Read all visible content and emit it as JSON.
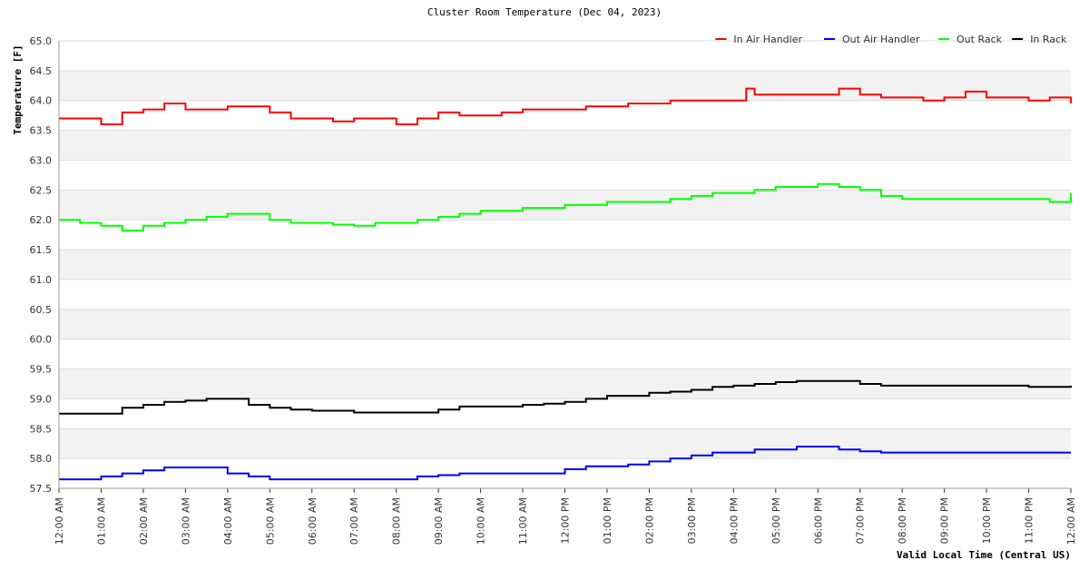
{
  "chart_data": {
    "type": "line",
    "title": "Cluster Room Temperature (Dec 04, 2023)",
    "xlabel": "Valid Local Time (Central US)",
    "ylabel": "Temperature [F]",
    "ylim": [
      57.5,
      65.0
    ],
    "xlim": [
      0,
      24
    ],
    "y_ticks": [
      "57.5",
      "58.0",
      "58.5",
      "59.0",
      "59.5",
      "60.0",
      "60.5",
      "61.0",
      "61.5",
      "62.0",
      "62.5",
      "63.0",
      "63.5",
      "64.0",
      "64.5",
      "65.0"
    ],
    "x_ticks": [
      "12:00 AM",
      "01:00 AM",
      "02:00 AM",
      "03:00 AM",
      "04:00 AM",
      "05:00 AM",
      "06:00 AM",
      "07:00 AM",
      "08:00 AM",
      "09:00 AM",
      "10:00 AM",
      "11:00 AM",
      "12:00 PM",
      "01:00 PM",
      "02:00 PM",
      "03:00 PM",
      "04:00 PM",
      "05:00 PM",
      "06:00 PM",
      "07:00 PM",
      "08:00 PM",
      "09:00 PM",
      "10:00 PM",
      "11:00 PM",
      "12:00 AM"
    ],
    "legend_position": "top-right",
    "series": [
      {
        "name": "In Air Handler",
        "color": "#ff0000",
        "x": [
          0,
          0.5,
          1,
          1.3,
          1.5,
          2,
          2.5,
          3,
          4,
          4.5,
          5,
          5.5,
          6,
          6.5,
          7,
          7.5,
          8,
          8.5,
          9,
          9.5,
          10,
          10.5,
          11,
          11.5,
          12,
          12.5,
          13,
          13.5,
          14,
          14.5,
          15,
          15.5,
          16,
          16.3,
          16.5,
          17,
          17.5,
          18,
          18.5,
          19,
          19.5,
          20,
          20.5,
          21,
          21.5,
          22,
          22.5,
          23,
          23.5,
          24
        ],
        "values": [
          63.7,
          63.7,
          63.6,
          63.6,
          63.8,
          63.85,
          63.95,
          63.85,
          63.9,
          63.9,
          63.8,
          63.7,
          63.7,
          63.65,
          63.7,
          63.7,
          63.6,
          63.7,
          63.8,
          63.75,
          63.75,
          63.8,
          63.85,
          63.85,
          63.85,
          63.9,
          63.9,
          63.95,
          63.95,
          64.0,
          64.0,
          64.0,
          64.0,
          64.2,
          64.1,
          64.1,
          64.1,
          64.1,
          64.2,
          64.1,
          64.05,
          64.05,
          64.0,
          64.05,
          64.15,
          64.05,
          64.05,
          64.0,
          64.05,
          63.95
        ]
      },
      {
        "name": "Out Air Handler",
        "color": "#0000ff",
        "x": [
          0,
          0.5,
          1,
          1.5,
          2,
          2.5,
          3,
          3.5,
          4,
          4.5,
          5,
          5.5,
          6,
          6.5,
          7,
          7.5,
          8,
          8.5,
          9,
          9.5,
          10,
          10.5,
          11,
          11.5,
          12,
          12.5,
          13,
          13.5,
          14,
          14.5,
          15,
          15.5,
          16,
          16.5,
          17,
          17.5,
          18,
          18.5,
          19,
          19.5,
          20,
          20.5,
          21,
          21.5,
          22,
          22.5,
          23,
          23.5,
          24
        ],
        "values": [
          57.65,
          57.65,
          57.7,
          57.75,
          57.8,
          57.85,
          57.85,
          57.85,
          57.75,
          57.7,
          57.65,
          57.65,
          57.65,
          57.65,
          57.65,
          57.65,
          57.65,
          57.7,
          57.72,
          57.75,
          57.75,
          57.75,
          57.75,
          57.75,
          57.82,
          57.87,
          57.87,
          57.9,
          57.95,
          58.0,
          58.05,
          58.1,
          58.1,
          58.15,
          58.15,
          58.2,
          58.2,
          58.15,
          58.12,
          58.1,
          58.1,
          58.1,
          58.1,
          58.1,
          58.1,
          58.1,
          58.1,
          58.1,
          58.1
        ]
      },
      {
        "name": "Out Rack",
        "color": "#00ff00",
        "x": [
          0,
          0.5,
          1,
          1.5,
          2,
          2.5,
          3,
          3.5,
          4,
          4.5,
          5,
          5.5,
          6,
          6.5,
          7,
          7.5,
          8,
          8.5,
          9,
          9.5,
          10,
          10.5,
          11,
          11.5,
          12,
          12.5,
          13,
          13.5,
          14,
          14.5,
          15,
          15.5,
          16,
          16.5,
          17,
          17.5,
          18,
          18.5,
          19,
          19.5,
          20,
          20.5,
          21,
          21.5,
          22,
          22.5,
          23,
          23.5,
          24
        ],
        "values": [
          62.0,
          61.95,
          61.9,
          61.82,
          61.9,
          61.95,
          62.0,
          62.05,
          62.1,
          62.1,
          62.0,
          61.95,
          61.95,
          61.92,
          61.9,
          61.95,
          61.95,
          62.0,
          62.05,
          62.1,
          62.15,
          62.15,
          62.2,
          62.2,
          62.25,
          62.25,
          62.3,
          62.3,
          62.3,
          62.35,
          62.4,
          62.45,
          62.45,
          62.5,
          62.55,
          62.55,
          62.6,
          62.55,
          62.5,
          62.4,
          62.35,
          62.35,
          62.35,
          62.35,
          62.35,
          62.35,
          62.35,
          62.3,
          62.45
        ]
      },
      {
        "name": "In Rack",
        "color": "#000000",
        "x": [
          0,
          0.5,
          1,
          1.5,
          2,
          2.5,
          3,
          3.5,
          4,
          4.5,
          5,
          5.5,
          6,
          6.5,
          7,
          7.5,
          8,
          8.5,
          9,
          9.5,
          10,
          10.5,
          11,
          11.5,
          12,
          12.5,
          13,
          13.5,
          14,
          14.5,
          15,
          15.5,
          16,
          16.5,
          17,
          17.5,
          18,
          18.5,
          19,
          19.5,
          20,
          20.5,
          21,
          21.5,
          22,
          22.5,
          23,
          23.5,
          24
        ],
        "values": [
          58.75,
          58.75,
          58.75,
          58.85,
          58.9,
          58.95,
          58.97,
          59.0,
          59.0,
          58.9,
          58.85,
          58.82,
          58.8,
          58.8,
          58.77,
          58.77,
          58.77,
          58.77,
          58.82,
          58.87,
          58.87,
          58.87,
          58.9,
          58.92,
          58.95,
          59.0,
          59.05,
          59.05,
          59.1,
          59.12,
          59.15,
          59.2,
          59.22,
          59.25,
          59.28,
          59.3,
          59.3,
          59.3,
          59.25,
          59.22,
          59.22,
          59.22,
          59.22,
          59.22,
          59.22,
          59.22,
          59.2,
          59.2,
          59.22
        ]
      }
    ]
  }
}
